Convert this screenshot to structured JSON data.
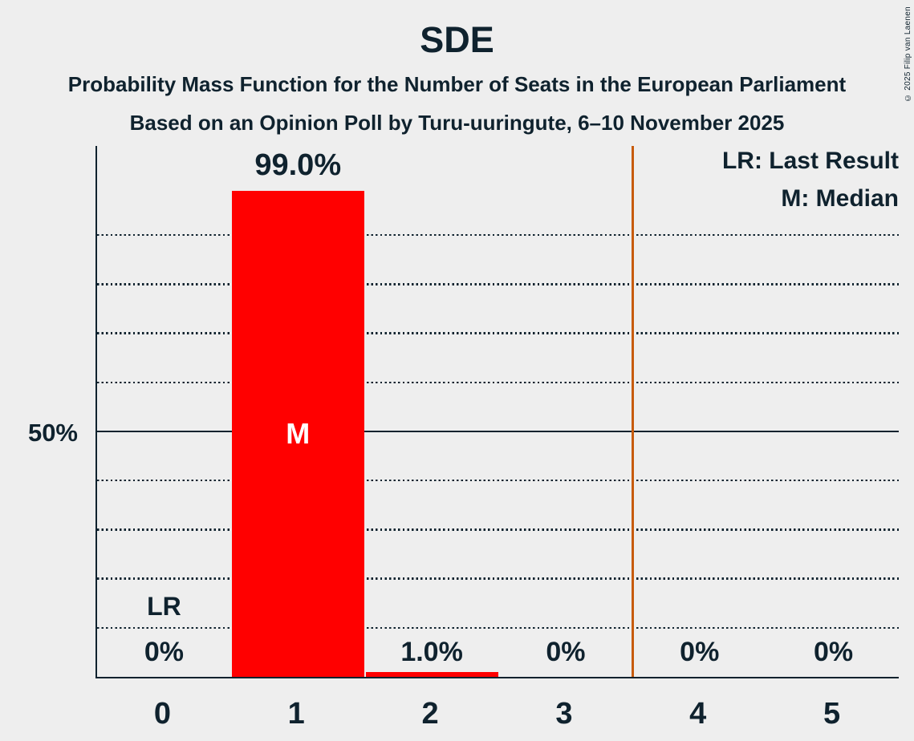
{
  "title": "SDE",
  "subtitle1": "Probability Mass Function for the Number of Seats in the European Parliament",
  "subtitle2": "Based on an Opinion Poll by Turu-uuringute, 6–10 November 2025",
  "copyright": "© 2025 Filip van Laenen",
  "legend": {
    "lr": "LR: Last Result",
    "m": "M: Median"
  },
  "y_axis": {
    "label_50": "50%"
  },
  "colors": {
    "background": "#EEEEEE",
    "ink": "#0F222E",
    "bar": "#FF0000",
    "threshold_line": "#C75B0C",
    "median_text": "#FFFFFF"
  },
  "chart_data": {
    "type": "bar",
    "title": "SDE",
    "xlabel": "",
    "ylabel": "",
    "categories": [
      "0",
      "1",
      "2",
      "3",
      "4",
      "5"
    ],
    "values": [
      0,
      99.0,
      1.0,
      0,
      0,
      0
    ],
    "value_labels": [
      "0%",
      "99.0%",
      "1.0%",
      "0%",
      "0%",
      "0%"
    ],
    "ylim": [
      0,
      108.5
    ],
    "y_solid_line_pct": 50,
    "y_gridlines_pct": [
      10,
      20,
      30,
      40,
      60,
      70,
      80,
      90
    ],
    "grid": "dotted horizontal, solid at 50%",
    "legend_position": "top-right",
    "last_result_marker": "LR",
    "last_result_category": "0",
    "median_marker": "M",
    "median_category": "1",
    "vertical_line_x": 3.5
  }
}
